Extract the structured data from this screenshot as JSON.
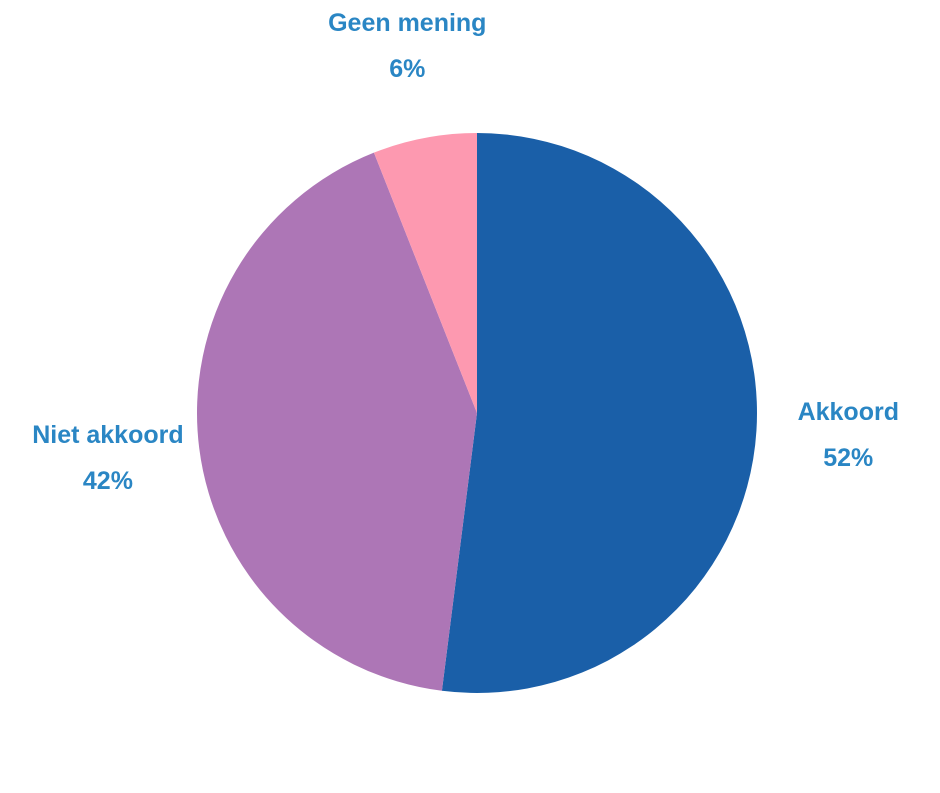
{
  "chart_data": {
    "type": "pie",
    "categories": [
      "Akkoord",
      "Niet akkoord",
      "Geen mening"
    ],
    "values": [
      52,
      42,
      6
    ],
    "value_labels": [
      "52%",
      "42%",
      "6%"
    ],
    "colors": [
      "#1a5fa8",
      "#ad76b6",
      "#fd99b0"
    ]
  }
}
